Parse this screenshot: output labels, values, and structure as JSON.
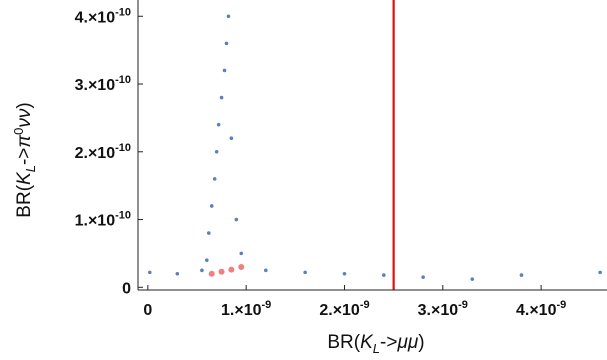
{
  "chart_data": {
    "type": "scatter",
    "xlabel": "BR(K_L->μμ)",
    "ylabel": "BR(K_L->π^0νν)",
    "xlim": [
      -1e-10,
      4.67e-09
    ],
    "ylim": [
      -4e-12,
      4.24e-10
    ],
    "x_ticks": [
      {
        "value": 0,
        "label": "0"
      },
      {
        "value": 1e-09,
        "label": "1.×10",
        "exp": "-9"
      },
      {
        "value": 2e-09,
        "label": "2.×10",
        "exp": "-9"
      },
      {
        "value": 3e-09,
        "label": "3.×10",
        "exp": "-9"
      },
      {
        "value": 4e-09,
        "label": "4.×10",
        "exp": "-9"
      }
    ],
    "y_ticks": [
      {
        "value": 0,
        "label": "0"
      },
      {
        "value": 1e-10,
        "label": "1.×10",
        "exp": "-10"
      },
      {
        "value": 2e-10,
        "label": "2.×10",
        "exp": "-10"
      },
      {
        "value": 3e-10,
        "label": "3.×10",
        "exp": "-10"
      },
      {
        "value": 4e-10,
        "label": "4.×10",
        "exp": "-10"
      }
    ],
    "vertical_line": {
      "x": 2.5e-09,
      "color": "#dd1111"
    },
    "grid": false,
    "series": [
      {
        "color": "#5b7fbf",
        "points": [
          [
            5.5e-10,
            2.5e-11
          ],
          [
            6e-10,
            4e-11
          ],
          [
            6.2e-10,
            8e-11
          ],
          [
            6.5e-10,
            1.2e-10
          ],
          [
            6.8e-10,
            1.6e-10
          ],
          [
            7e-10,
            2e-10
          ],
          [
            7.2e-10,
            2.4e-10
          ],
          [
            7.5e-10,
            2.8e-10
          ],
          [
            7.8e-10,
            3.2e-10
          ],
          [
            8e-10,
            3.6e-10
          ],
          [
            8.2e-10,
            4e-10
          ],
          [
            8.5e-10,
            2.2e-10
          ],
          [
            9e-10,
            1e-10
          ],
          [
            9.5e-10,
            5e-11
          ],
          [
            1.2e-09,
            2.5e-11
          ],
          [
            1.6e-09,
            2.2e-11
          ],
          [
            2e-09,
            2e-11
          ],
          [
            2.4e-09,
            1.8e-11
          ],
          [
            2.8e-09,
            1.5e-11
          ],
          [
            3.3e-09,
            1.2e-11
          ],
          [
            3.8e-09,
            1.8e-11
          ],
          [
            4.6e-09,
            2.2e-11
          ],
          [
            2e-11,
            2.2e-11
          ],
          [
            3e-10,
            2e-11
          ]
        ]
      },
      {
        "color": "#f08080",
        "points": [
          [
            6.5e-10,
            2e-11
          ],
          [
            7.5e-10,
            2.3e-11
          ],
          [
            8.5e-10,
            2.6e-11
          ],
          [
            9.5e-10,
            3e-11
          ]
        ]
      }
    ]
  }
}
